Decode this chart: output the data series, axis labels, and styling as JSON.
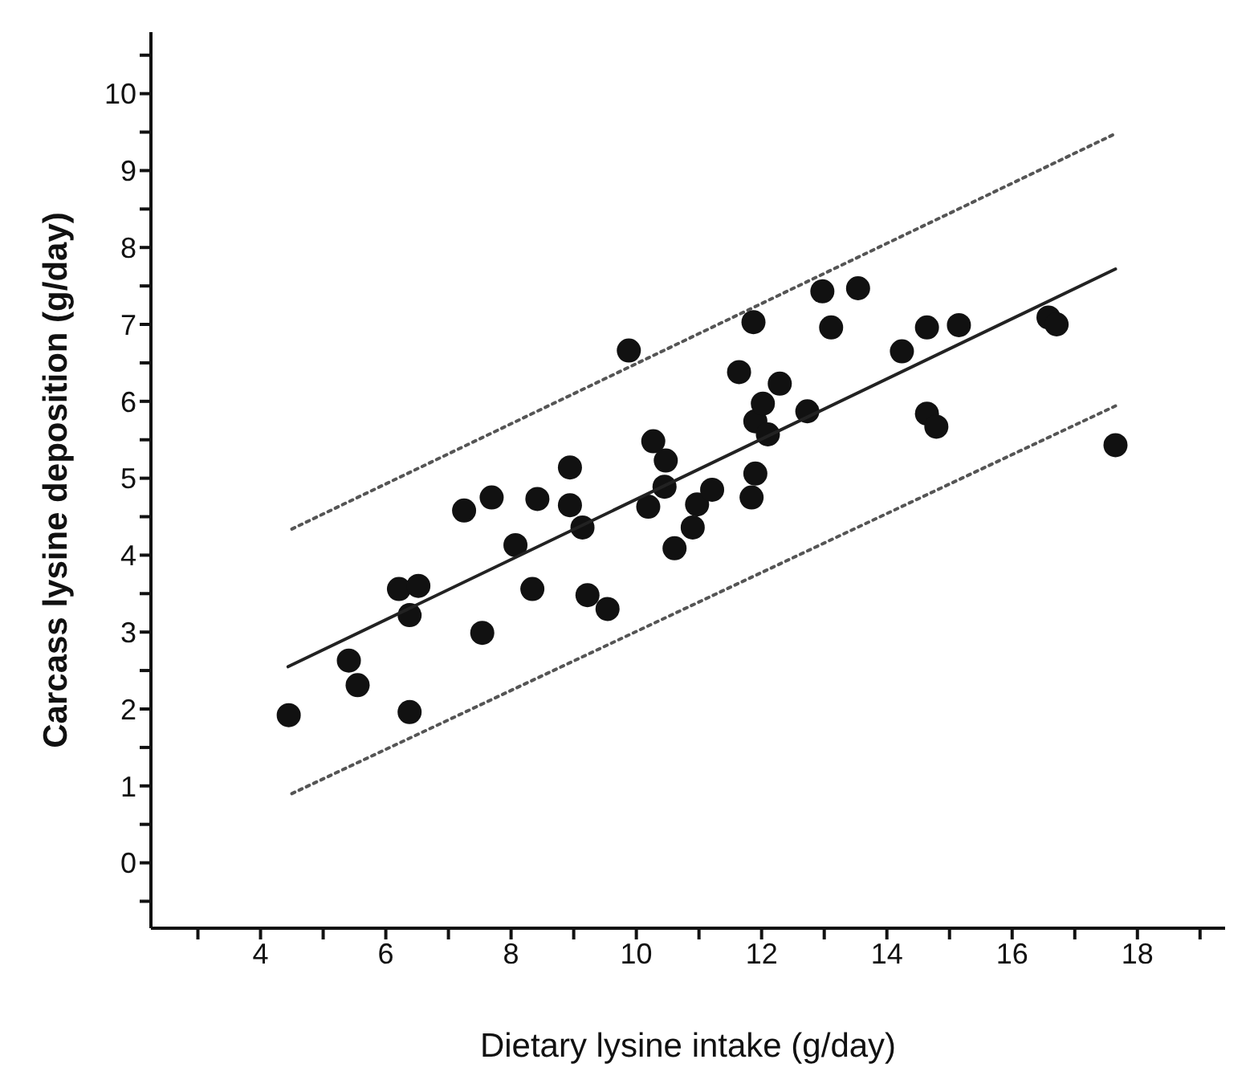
{
  "chart_data": {
    "type": "scatter",
    "xlabel": "Dietary lysine intake (g/day)",
    "ylabel": "Carcass lysine deposition (g/day)",
    "xlim": [
      2.25,
      19.4
    ],
    "ylim": [
      -0.85,
      10.8
    ],
    "xticks": [
      {
        "value": 3,
        "label": null
      },
      4,
      {
        "value": 5,
        "label": null
      },
      6,
      {
        "value": 7,
        "label": null
      },
      8,
      {
        "value": 9,
        "label": null
      },
      10,
      {
        "value": 11,
        "label": null
      },
      12,
      {
        "value": 13,
        "label": null
      },
      14,
      {
        "value": 15,
        "label": null
      },
      16,
      {
        "value": 17,
        "label": null
      },
      18,
      {
        "value": 19,
        "label": null
      }
    ],
    "yticks": [
      {
        "value": -0.5,
        "label": null
      },
      0,
      {
        "value": 0.5,
        "label": null
      },
      1,
      {
        "value": 1.5,
        "label": null
      },
      2,
      {
        "value": 2.5,
        "label": null
      },
      3,
      {
        "value": 3.5,
        "label": null
      },
      4,
      {
        "value": 4.5,
        "label": null
      },
      5,
      {
        "value": 5.5,
        "label": null
      },
      6,
      {
        "value": 6.5,
        "label": null
      },
      7,
      {
        "value": 7.5,
        "label": null
      },
      8,
      {
        "value": 8.5,
        "label": null
      },
      9,
      {
        "value": 9.5,
        "label": null
      },
      10,
      {
        "value": 10.5,
        "label": null
      }
    ],
    "grid": false,
    "legend": false,
    "series": [
      {
        "marker": "circle",
        "color": "#111111",
        "x": [
          4.45,
          5.41,
          5.55,
          6.38,
          6.21,
          6.38,
          6.52,
          7.25,
          7.54,
          7.69,
          8.07,
          8.34,
          8.42,
          8.94,
          8.94,
          9.14,
          9.22,
          9.54,
          9.88,
          10.19,
          10.27,
          10.45,
          10.47,
          10.61,
          10.9,
          10.97,
          11.21,
          11.64,
          11.84,
          11.87,
          11.9,
          11.9,
          12.02,
          12.1,
          12.29,
          12.73,
          12.97,
          13.11,
          13.54,
          14.24,
          14.64,
          14.64,
          14.79,
          15.15,
          16.58,
          16.71,
          17.65
        ],
        "values": [
          1.92,
          2.63,
          2.31,
          1.96,
          3.56,
          3.22,
          3.6,
          4.58,
          2.99,
          4.75,
          4.13,
          3.56,
          4.73,
          5.14,
          4.65,
          4.36,
          3.48,
          3.3,
          6.66,
          4.63,
          5.48,
          4.89,
          5.23,
          4.09,
          4.36,
          4.66,
          4.85,
          6.38,
          4.75,
          7.03,
          5.06,
          5.74,
          5.97,
          5.57,
          6.23,
          5.87,
          7.43,
          6.96,
          7.47,
          6.65,
          6.96,
          5.84,
          5.67,
          6.99,
          7.09,
          7.0,
          5.43
        ]
      },
      {
        "type": "line",
        "marker": "none",
        "color": "#222222",
        "line_style": "solid",
        "x": [
          4.44,
          17.65
        ],
        "values": [
          2.55,
          7.72
        ]
      },
      {
        "type": "line",
        "marker": "none",
        "color": "#555555",
        "line_style": "dotted",
        "x": [
          4.5,
          17.65
        ],
        "values": [
          4.34,
          9.48
        ]
      },
      {
        "type": "line",
        "marker": "none",
        "color": "#555555",
        "line_style": "dotted",
        "x": [
          4.5,
          17.65
        ],
        "values": [
          0.9,
          5.94
        ]
      }
    ]
  }
}
